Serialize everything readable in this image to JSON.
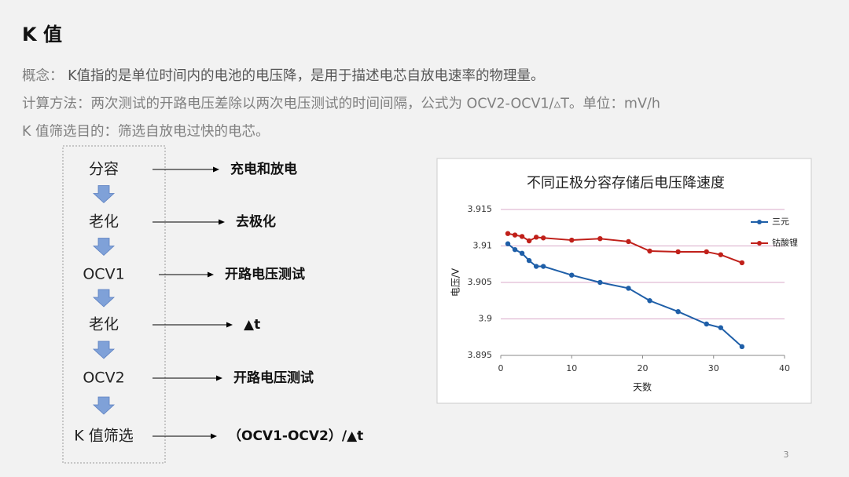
{
  "title": "K 值",
  "lines": [
    {
      "label": "概念：",
      "text": " K值指的是单位时间内的电池的电压降，是用于描述电芯自放电速率的物理量。"
    },
    {
      "label": "计算方法：",
      "text": "两次测试的开路电压差除以两次电压测试的时间间隔，公式为 OCV2-OCV1/▵T。单位：mV/h"
    },
    {
      "label": "K 值筛选目的：",
      "text": "筛选自放电过快的电芯。"
    }
  ],
  "flow": [
    {
      "step": "分容",
      "note": "充电和放电"
    },
    {
      "step": "老化",
      "note": "去极化"
    },
    {
      "step": "OCV1",
      "note": "开路电压测试"
    },
    {
      "step": "老化",
      "note": "▲t"
    },
    {
      "step": "OCV2",
      "note": "开路电压测试"
    },
    {
      "step": "K 值筛选",
      "note": "（OCV1-OCV2）/▲t"
    }
  ],
  "page_number": "3",
  "chart_data": {
    "type": "line",
    "title": "不同正极分容存储后电压降速度",
    "x_label": "天数",
    "y_label": "电压/V",
    "x": [
      1,
      2,
      3,
      4,
      5,
      6,
      10,
      14,
      18,
      21,
      25,
      29,
      31,
      34
    ],
    "series": [
      {
        "name": "三元",
        "color": "#1f5fa8",
        "values": [
          3.9103,
          3.9095,
          3.909,
          3.908,
          3.9072,
          3.9072,
          3.906,
          3.905,
          3.9042,
          3.9025,
          3.901,
          3.8993,
          3.8988,
          3.8962
        ]
      },
      {
        "name": "钴酸锂",
        "color": "#c0201a",
        "values": [
          3.9117,
          3.9115,
          3.9113,
          3.9107,
          3.9112,
          3.9111,
          3.9108,
          3.911,
          3.9106,
          3.9093,
          3.9092,
          3.9092,
          3.9088,
          3.9077
        ]
      }
    ],
    "xlim": [
      0,
      40
    ],
    "xticks": [
      0,
      10,
      20,
      30,
      40
    ],
    "ylim": [
      3.895,
      3.915
    ],
    "yticks": [
      3.895,
      3.9,
      3.905,
      3.91,
      3.915
    ],
    "grid": true,
    "grid_color": "#d8a9c9",
    "legend": "right"
  }
}
